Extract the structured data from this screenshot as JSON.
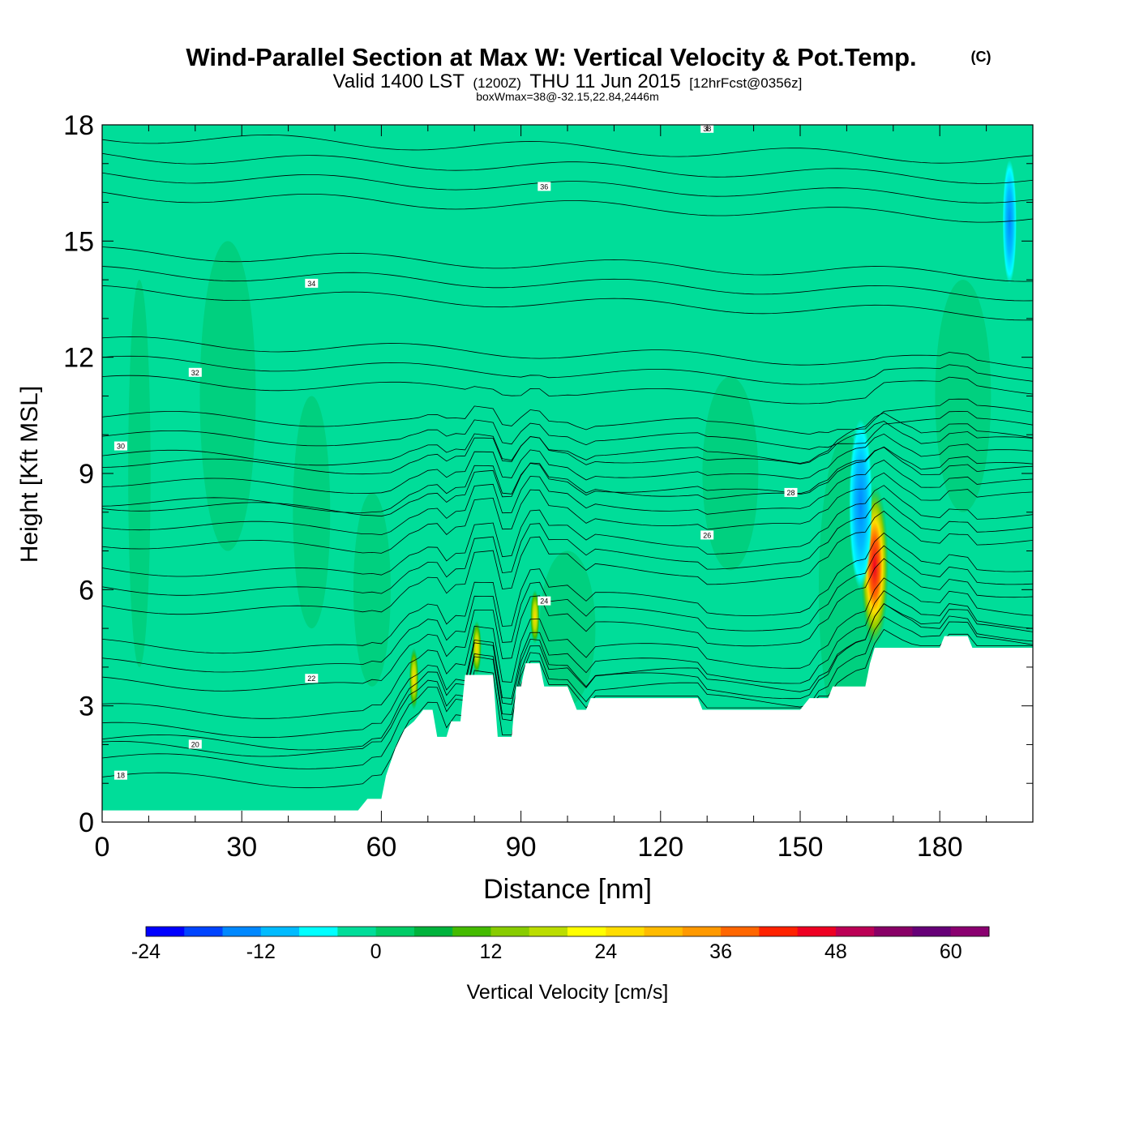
{
  "chart_data": {
    "type": "heatmap",
    "title": "Wind-Parallel Section at Max W: Vertical Velocity & Pot.Temp.",
    "title_mark": "(C)",
    "subtitle_main": "Valid 1400 LST",
    "subtitle_utc": "(1200Z)",
    "subtitle_date": "THU 11 Jun 2015",
    "subtitle_fcst": "[12hrFcst@0356z]",
    "subtitle_box": "boxWmax=38@-32.15,22.84,2446m",
    "xlabel": "Distance [nm]",
    "ylabel": "Height [Kft MSL]",
    "xlim": [
      0,
      200
    ],
    "ylim": [
      0,
      18
    ],
    "xticks": [
      0,
      30,
      60,
      90,
      120,
      150,
      180
    ],
    "yticks": [
      0,
      3,
      6,
      9,
      12,
      15,
      18
    ],
    "colorbar": {
      "label": "Vertical Velocity [cm/s]",
      "min": -24,
      "max": 64,
      "step": 4,
      "tick_values": [
        -24,
        -12,
        0,
        12,
        24,
        36,
        48,
        60
      ],
      "colors": [
        "#0000ff",
        "#0044ff",
        "#0088ff",
        "#00bbff",
        "#00ffff",
        "#00dd99",
        "#00cc66",
        "#00b33c",
        "#44bb00",
        "#88cc00",
        "#bbdd00",
        "#ffff00",
        "#ffdd00",
        "#ffbb00",
        "#ff9900",
        "#ff6600",
        "#ff2200",
        "#ee0022",
        "#bb0055",
        "#880066",
        "#660077",
        "#8a0070"
      ]
    },
    "background_color": "#00dd99",
    "terrain_profile": [
      [
        0,
        0.3
      ],
      [
        55,
        0.3
      ],
      [
        57,
        0.6
      ],
      [
        60,
        0.6
      ],
      [
        61,
        1.2
      ],
      [
        63,
        1.9
      ],
      [
        65,
        2.4
      ],
      [
        67,
        2.6
      ],
      [
        69,
        2.9
      ],
      [
        71,
        2.9
      ],
      [
        72,
        2.2
      ],
      [
        74,
        2.2
      ],
      [
        75,
        2.6
      ],
      [
        77,
        2.6
      ],
      [
        78,
        3.8
      ],
      [
        80,
        3.8
      ],
      [
        84,
        3.8
      ],
      [
        85,
        2.2
      ],
      [
        88,
        2.2
      ],
      [
        89,
        3.5
      ],
      [
        90,
        3.5
      ],
      [
        91,
        4.1
      ],
      [
        94,
        4.1
      ],
      [
        95,
        3.5
      ],
      [
        100,
        3.5
      ],
      [
        101,
        3.2
      ],
      [
        102,
        2.9
      ],
      [
        104,
        2.9
      ],
      [
        105,
        3.2
      ],
      [
        128,
        3.2
      ],
      [
        129,
        2.9
      ],
      [
        150,
        2.9
      ],
      [
        152,
        3.2
      ],
      [
        156,
        3.2
      ],
      [
        157,
        3.5
      ],
      [
        164,
        3.5
      ],
      [
        165,
        4.1
      ],
      [
        166,
        4.5
      ],
      [
        180,
        4.5
      ],
      [
        181,
        4.8
      ],
      [
        186,
        4.8
      ],
      [
        187,
        4.5
      ],
      [
        200,
        4.5
      ]
    ],
    "features": [
      {
        "kind": "updraft",
        "x": 166,
        "z": 6.6,
        "rx": 3,
        "rz": 2.1,
        "max": 56
      },
      {
        "kind": "updraft",
        "x": 93,
        "z": 5.3,
        "rx": 1,
        "rz": 0.7,
        "max": 24
      },
      {
        "kind": "updraft",
        "x": 80.5,
        "z": 4.5,
        "rx": 1,
        "rz": 0.7,
        "max": 24
      },
      {
        "kind": "updraft",
        "x": 67,
        "z": 3.7,
        "rx": 1,
        "rz": 0.8,
        "max": 16
      },
      {
        "kind": "downdraft",
        "x": 163,
        "z": 8.2,
        "rx": 2.5,
        "rz": 2.2,
        "min": -12
      },
      {
        "kind": "downdraft",
        "x": 195,
        "z": 15.5,
        "rx": 1.5,
        "rz": 1.6,
        "min": -12
      }
    ],
    "isentropes": [
      {
        "label": "18",
        "z0": 1.0
      },
      {
        "label": "20",
        "z0": 1.8
      },
      {
        "label": "22",
        "z0": 3.5
      },
      {
        "label": "24",
        "z0": 5.5
      },
      {
        "label": "26",
        "z0": 7.2
      },
      {
        "label": "28",
        "z0": 8.3
      },
      {
        "label": "30",
        "z0": 9.5
      },
      {
        "label": "32",
        "z0": 11.4
      },
      {
        "label": "34",
        "z0": 13.7
      },
      {
        "label": "36",
        "z0": 16.2
      },
      {
        "label": "38",
        "z0": 17.7
      }
    ]
  }
}
